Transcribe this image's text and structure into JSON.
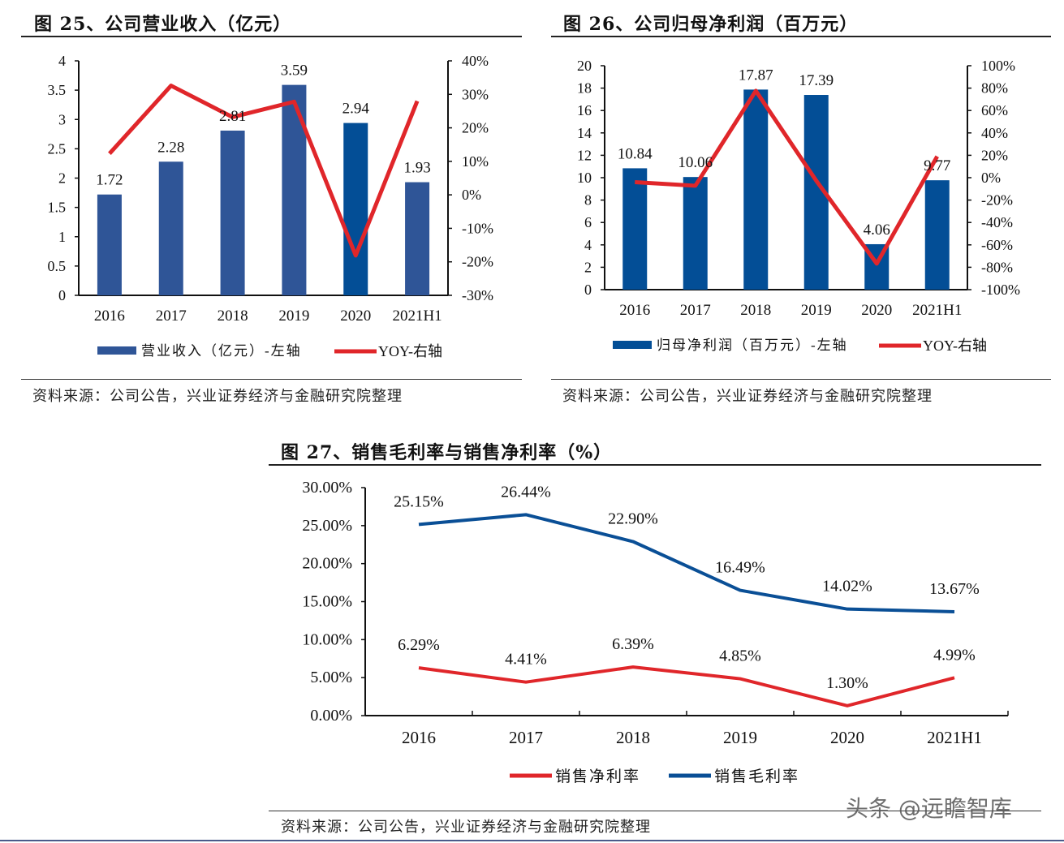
{
  "charts_meta": [
    {
      "title": "图 25、公司营业收入（亿元）",
      "source": "资料来源：公司公告，兴业证券经济与金融研究院整理"
    },
    {
      "title": "图 26、公司归母净利润（百万元）",
      "source": "资料来源：公司公告，兴业证券经济与金融研究院整理"
    },
    {
      "title": "图 27、销售毛利率与销售净利率（%）",
      "source": "资料来源：公司公告，兴业证券经济与金融研究院整理"
    }
  ],
  "watermark": "头条 @远瞻智库",
  "colors": {
    "bar": "#2f5597",
    "bar_dark": "#034e96",
    "red": "#e0262a",
    "blue": "#0a4f96"
  },
  "chart_data": [
    {
      "type": "bar+line",
      "categories": [
        "2016",
        "2017",
        "2018",
        "2019",
        "2020",
        "2021H1"
      ],
      "series": [
        {
          "name": "营业收入（亿元）-左轴",
          "type": "bar",
          "axis": "left",
          "values": [
            1.72,
            2.28,
            2.81,
            3.59,
            2.94,
            1.93
          ],
          "labels": [
            "1.72",
            "2.28",
            "2.81",
            "3.59",
            "2.94",
            "1.93"
          ]
        },
        {
          "name": "YOY-右轴",
          "type": "line",
          "axis": "right",
          "values": [
            12.3,
            32.6,
            23.2,
            27.8,
            -18.1,
            28.0
          ]
        }
      ],
      "ylim_left": [
        0,
        4
      ],
      "yticks_left": [
        "0",
        "0.5",
        "1",
        "1.5",
        "2",
        "2.5",
        "3",
        "3.5",
        "4"
      ],
      "ylim_right": [
        -30,
        40
      ],
      "yticks_right": [
        "-30%",
        "-20%",
        "-10%",
        "0%",
        "10%",
        "20%",
        "30%",
        "40%"
      ],
      "grid": false,
      "legend": "bottom"
    },
    {
      "type": "bar+line",
      "categories": [
        "2016",
        "2017",
        "2018",
        "2019",
        "2020",
        "2021H1"
      ],
      "series": [
        {
          "name": "归母净利润（百万元）-左轴",
          "type": "bar",
          "axis": "left",
          "values": [
            10.84,
            10.06,
            17.87,
            17.39,
            4.06,
            9.77
          ],
          "labels": [
            "10.84",
            "10.06",
            "17.87",
            "17.39",
            "4.06",
            "9.77"
          ]
        },
        {
          "name": "YOY-右轴",
          "type": "line",
          "axis": "right",
          "values": [
            -4,
            -7.2,
            77.6,
            -2.7,
            -76.7,
            19
          ]
        }
      ],
      "ylim_left": [
        0,
        20
      ],
      "yticks_left": [
        "0",
        "2",
        "4",
        "6",
        "8",
        "10",
        "12",
        "14",
        "16",
        "18",
        "20"
      ],
      "ylim_right": [
        -100,
        100
      ],
      "yticks_right": [
        "-100%",
        "-80%",
        "-60%",
        "-40%",
        "-20%",
        "0%",
        "20%",
        "40%",
        "60%",
        "80%",
        "100%"
      ],
      "grid": false,
      "legend": "bottom"
    },
    {
      "type": "line",
      "categories": [
        "2016",
        "2017",
        "2018",
        "2019",
        "2020",
        "2021H1"
      ],
      "series": [
        {
          "name": "销售净利率",
          "values": [
            6.29,
            4.41,
            6.39,
            4.85,
            1.3,
            4.99
          ],
          "labels": [
            "6.29%",
            "4.41%",
            "6.39%",
            "4.85%",
            "1.30%",
            "4.99%"
          ]
        },
        {
          "name": "销售毛利率",
          "values": [
            25.15,
            26.44,
            22.9,
            16.49,
            14.02,
            13.67
          ],
          "labels": [
            "25.15%",
            "26.44%",
            "22.90%",
            "16.49%",
            "14.02%",
            "13.67%"
          ]
        }
      ],
      "ylim": [
        0,
        30
      ],
      "yticks": [
        "0.00%",
        "5.00%",
        "10.00%",
        "15.00%",
        "20.00%",
        "25.00%",
        "30.00%"
      ],
      "grid": false,
      "legend": "bottom"
    }
  ]
}
